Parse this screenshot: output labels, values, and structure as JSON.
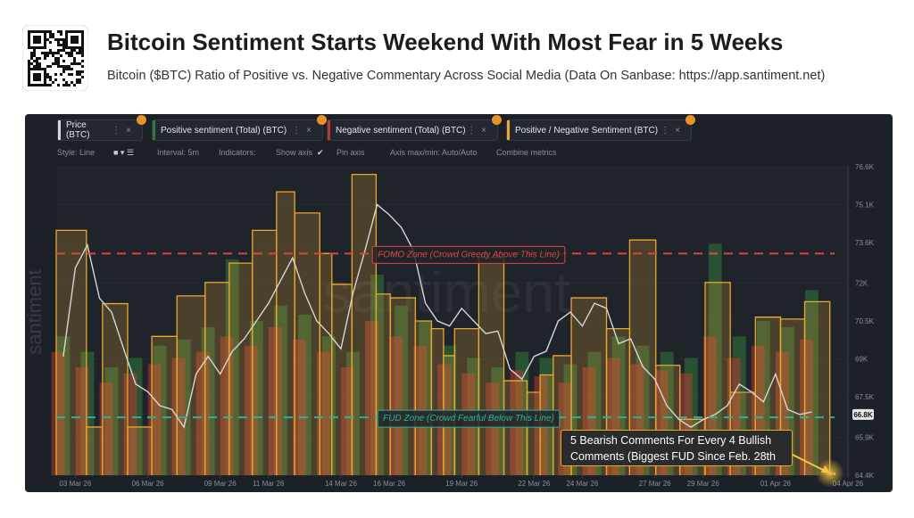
{
  "header": {
    "title": "Bitcoin Sentiment Starts Weekend With Most Fear in 5 Weeks",
    "subtitle": "Bitcoin ($BTC) Ratio of Positive vs. Negative Commentary Across Social Media (Data On Sanbase: https://app.santiment.net)"
  },
  "toolbar": {
    "style": "Style: Line",
    "interval": "Interval: 5m",
    "indicators": "Indicators:",
    "show_axis": "Show axis",
    "pin_axis": "Pin axis",
    "axis_minmax": "Axis max/min: Auto/Auto",
    "combine": "Combine metrics"
  },
  "chart_data": {
    "type": "line",
    "watermark": "santiment",
    "xlim": [
      "2026-03-02T05:00",
      "2026-04-04T00:00"
    ],
    "xticks": [
      {
        "value": "2026-03-03T00:00",
        "label": "03 Mar 26"
      },
      {
        "value": "2026-03-06T00:00",
        "label": "06 Mar 26"
      },
      {
        "value": "2026-03-09T00:00",
        "label": "09 Mar 26"
      },
      {
        "value": "2026-03-11T00:00",
        "label": "11 Mar 26"
      },
      {
        "value": "2026-03-14T00:00",
        "label": "14 Mar 26"
      },
      {
        "value": "2026-03-16T00:00",
        "label": "16 Mar 26"
      },
      {
        "value": "2026-03-19T00:00",
        "label": "19 Mar 26"
      },
      {
        "value": "2026-03-22T00:00",
        "label": "22 Mar 26"
      },
      {
        "value": "2026-03-24T00:00",
        "label": "24 Mar 26"
      },
      {
        "value": "2026-03-27T00:00",
        "label": "27 Mar 26"
      },
      {
        "value": "2026-03-29T00:00",
        "label": "29 Mar 26"
      },
      {
        "value": "2026-04-01T00:00",
        "label": "01 Apr 26"
      },
      {
        "value": "2026-04-04T00:00",
        "label": "04 Apr 26"
      }
    ],
    "ylim": [
      64400,
      76600
    ],
    "yticks": [
      {
        "value": 76600,
        "label": "76.6K"
      },
      {
        "value": 75100,
        "label": "75.1K"
      },
      {
        "value": 73600,
        "label": "73.6K"
      },
      {
        "value": 72000,
        "label": "72K"
      },
      {
        "value": 70500,
        "label": "70.5K"
      },
      {
        "value": 69000,
        "label": "69K"
      },
      {
        "value": 67500,
        "label": "67.5K"
      },
      {
        "value": 65900,
        "label": "65.9K"
      },
      {
        "value": 64400,
        "label": "64.4K"
      }
    ],
    "y2lim": [
      0.8,
      2.4
    ],
    "y3lim": [
      0,
      100
    ],
    "price_marker": {
      "value": 66800,
      "label": "66.8K"
    },
    "series": [
      {
        "name": "Price (BTC)",
        "type": "line",
        "color": "#d6d6d6",
        "x": [
          "2026-03-02T12:00",
          "2026-03-03T00:00",
          "2026-03-03T12:00",
          "2026-03-04T00:00",
          "2026-03-04T12:00",
          "2026-03-05T00:00",
          "2026-03-05T12:00",
          "2026-03-06T00:00",
          "2026-03-06T12:00",
          "2026-03-07T00:00",
          "2026-03-07T12:00",
          "2026-03-08T00:00",
          "2026-03-08T12:00",
          "2026-03-09T00:00",
          "2026-03-09T12:00",
          "2026-03-10T00:00",
          "2026-03-10T12:00",
          "2026-03-11T00:00",
          "2026-03-11T12:00",
          "2026-03-12T00:00",
          "2026-03-12T12:00",
          "2026-03-13T00:00",
          "2026-03-13T12:00",
          "2026-03-14T00:00",
          "2026-03-14T12:00",
          "2026-03-15T00:00",
          "2026-03-15T12:00",
          "2026-03-16T00:00",
          "2026-03-16T12:00",
          "2026-03-17T00:00",
          "2026-03-17T12:00",
          "2026-03-18T00:00",
          "2026-03-18T12:00",
          "2026-03-19T00:00",
          "2026-03-19T12:00",
          "2026-03-20T00:00",
          "2026-03-20T12:00",
          "2026-03-21T00:00",
          "2026-03-21T12:00",
          "2026-03-22T00:00",
          "2026-03-22T12:00",
          "2026-03-23T00:00",
          "2026-03-23T12:00",
          "2026-03-24T00:00",
          "2026-03-24T12:00",
          "2026-03-25T00:00",
          "2026-03-25T12:00",
          "2026-03-26T00:00",
          "2026-03-26T12:00",
          "2026-03-27T00:00",
          "2026-03-27T12:00",
          "2026-03-28T00:00",
          "2026-03-28T12:00",
          "2026-03-29T00:00",
          "2026-03-29T12:00",
          "2026-03-30T00:00",
          "2026-03-30T12:00",
          "2026-03-31T00:00",
          "2026-03-31T12:00",
          "2026-04-01T00:00",
          "2026-04-01T12:00",
          "2026-04-02T00:00",
          "2026-04-02T12:00"
        ],
        "values": [
          69090,
          72600,
          73500,
          71400,
          70850,
          69400,
          68000,
          67700,
          67150,
          67000,
          66300,
          68400,
          69100,
          68400,
          69300,
          69800,
          70500,
          71200,
          72100,
          73000,
          71600,
          70500,
          70000,
          69400,
          71600,
          73300,
          75100,
          74700,
          74200,
          73300,
          71200,
          70500,
          70300,
          71000,
          70500,
          70000,
          70100,
          68600,
          68200,
          69100,
          69300,
          70500,
          70850,
          70300,
          71200,
          71000,
          69600,
          69800,
          68700,
          68200,
          67150,
          66600,
          66300,
          66600,
          66800,
          67150,
          68000,
          67700,
          67300,
          68400,
          67000,
          66800,
          66900
        ]
      },
      {
        "name": "Positive sentiment (Total) (BTC)",
        "type": "bar",
        "color": "#2f7a3a",
        "axis": "y3",
        "x": [
          "2026-03-02T12:00",
          "2026-03-03T12:00",
          "2026-03-04T12:00",
          "2026-03-05T12:00",
          "2026-03-06T12:00",
          "2026-03-07T12:00",
          "2026-03-08T12:00",
          "2026-03-09T12:00",
          "2026-03-10T12:00",
          "2026-03-11T12:00",
          "2026-03-12T12:00",
          "2026-03-13T12:00",
          "2026-03-14T12:00",
          "2026-03-15T12:00",
          "2026-03-16T12:00",
          "2026-03-17T12:00",
          "2026-03-18T12:00",
          "2026-03-19T12:00",
          "2026-03-20T12:00",
          "2026-03-21T12:00",
          "2026-03-22T12:00",
          "2026-03-23T12:00",
          "2026-03-24T12:00",
          "2026-03-25T12:00",
          "2026-03-26T12:00",
          "2026-03-27T12:00",
          "2026-03-28T12:00",
          "2026-03-29T12:00",
          "2026-03-30T12:00",
          "2026-03-31T12:00",
          "2026-04-01T12:00",
          "2026-04-02T12:00"
        ],
        "values": [
          45,
          40,
          35,
          38,
          42,
          44,
          48,
          70,
          50,
          55,
          52,
          45,
          40,
          65,
          55,
          50,
          42,
          38,
          35,
          40,
          38,
          36,
          40,
          45,
          42,
          40,
          38,
          75,
          45,
          50,
          48,
          60
        ]
      },
      {
        "name": "Negative sentiment (Total) (BTC)",
        "type": "bar",
        "color": "#b23a30",
        "axis": "y3",
        "x": [
          "2026-03-02T12:00",
          "2026-03-03T12:00",
          "2026-03-04T12:00",
          "2026-03-05T12:00",
          "2026-03-06T12:00",
          "2026-03-07T12:00",
          "2026-03-08T12:00",
          "2026-03-09T12:00",
          "2026-03-10T12:00",
          "2026-03-11T12:00",
          "2026-03-12T12:00",
          "2026-03-13T12:00",
          "2026-03-14T12:00",
          "2026-03-15T12:00",
          "2026-03-16T12:00",
          "2026-03-17T12:00",
          "2026-03-18T12:00",
          "2026-03-19T12:00",
          "2026-03-20T12:00",
          "2026-03-21T12:00",
          "2026-03-22T12:00",
          "2026-03-23T12:00",
          "2026-03-24T12:00",
          "2026-03-25T12:00",
          "2026-03-26T12:00",
          "2026-03-27T12:00",
          "2026-03-28T12:00",
          "2026-03-29T12:00",
          "2026-03-30T12:00",
          "2026-03-31T12:00",
          "2026-04-01T12:00",
          "2026-04-02T12:00"
        ],
        "values": [
          40,
          35,
          30,
          33,
          36,
          38,
          40,
          45,
          42,
          48,
          44,
          40,
          35,
          50,
          45,
          42,
          36,
          33,
          30,
          34,
          32,
          30,
          35,
          38,
          36,
          34,
          33,
          45,
          38,
          42,
          40,
          44
        ]
      },
      {
        "name": "Positive / Negative Sentiment (BTC)",
        "type": "step",
        "color": "#e8a930",
        "axis": "y2",
        "x": [
          "2026-03-02T05:00",
          "2026-03-03T11:00",
          "2026-03-04T03:00",
          "2026-03-05T04:00",
          "2026-03-06T04:00",
          "2026-03-07T05:00",
          "2026-03-08T09:00",
          "2026-03-09T09:00",
          "2026-03-10T08:00",
          "2026-03-11T08:00",
          "2026-03-12T02:00",
          "2026-03-13T03:00",
          "2026-03-13T15:00",
          "2026-03-14T11:00",
          "2026-03-15T11:00",
          "2026-03-16T01:00",
          "2026-03-17T02:00",
          "2026-03-17T18:00",
          "2026-03-18T06:00",
          "2026-03-18T17:00",
          "2026-03-19T17:00",
          "2026-03-20T18:00",
          "2026-03-21T17:00",
          "2026-03-22T06:00",
          "2026-03-22T19:00",
          "2026-03-23T13:00",
          "2026-03-25T00:00",
          "2026-03-25T23:00",
          "2026-03-27T01:00",
          "2026-03-28T01:00",
          "2026-03-29T02:00",
          "2026-03-30T03:00",
          "2026-03-31T04:00",
          "2026-04-01T05:00",
          "2026-04-02T05:00",
          "2026-04-03T06:00"
        ],
        "x_end": "2026-04-03T11:00",
        "values": [
          2.07,
          1.05,
          1.69,
          1.05,
          1.52,
          1.73,
          1.8,
          1.9,
          2.07,
          2.27,
          2.16,
          1.95,
          1.79,
          2.36,
          1.74,
          1.72,
          1.6,
          1.56,
          1.42,
          1.56,
          1.93,
          1.29,
          1.23,
          1.32,
          1.42,
          1.72,
          1.56,
          2.02,
          1.37,
          1.09,
          1.8,
          1.23,
          1.62,
          1.61,
          1.7,
          0.81
        ]
      }
    ],
    "guides": [
      {
        "value": 1.95,
        "axis": "y2",
        "color": "#e0453c",
        "label": "FOMO Zone (Crowd Greedy Above This Line)"
      },
      {
        "value": 1.1,
        "axis": "y2",
        "color": "#2bb39a",
        "label": "FUD Zone (Crowd Fearful Below This Line)"
      }
    ],
    "callout": "5 Bearish Comments For Every 4 Bullish Comments (Biggest FUD Since Feb. 28th"
  }
}
